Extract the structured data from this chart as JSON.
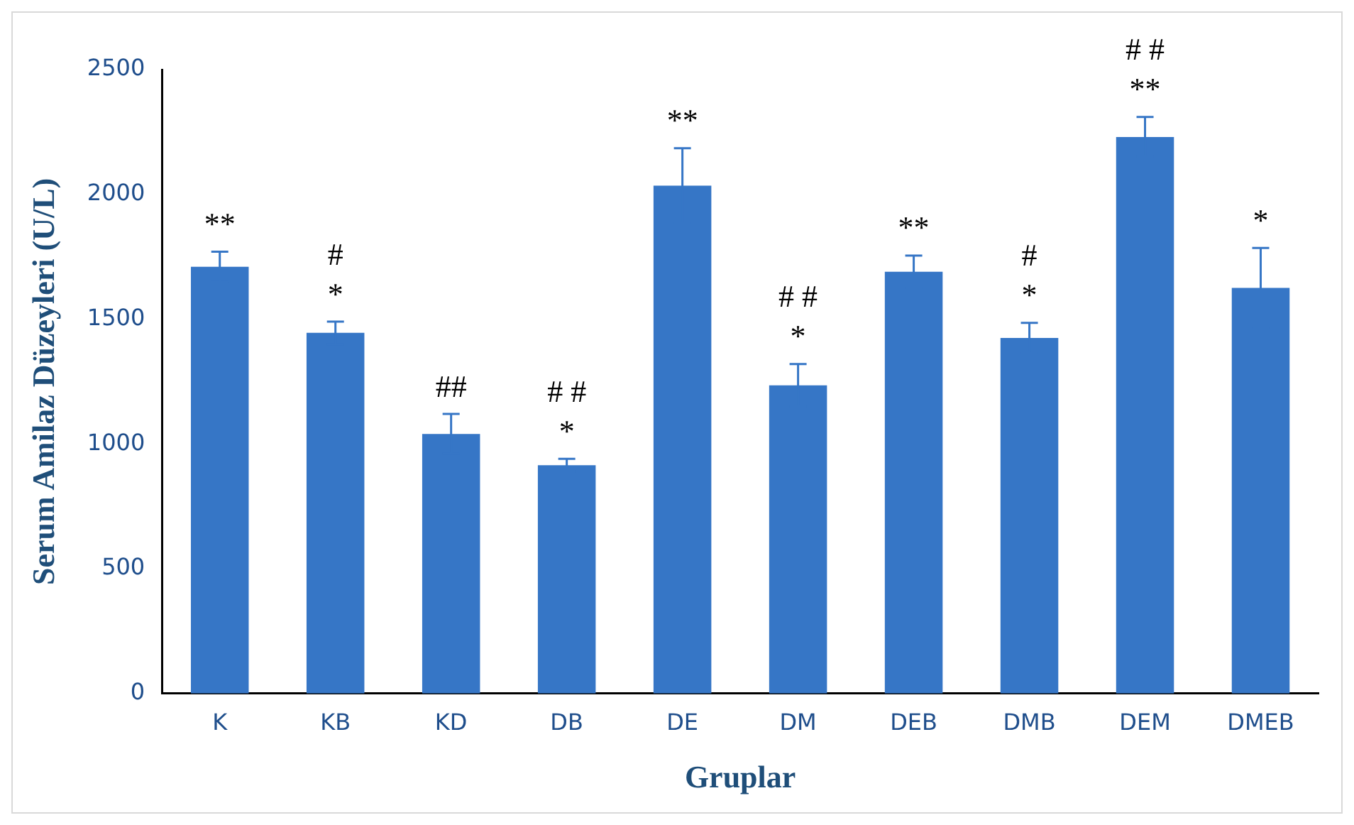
{
  "chart_data": {
    "type": "bar",
    "xlabel": "Gruplar",
    "ylabel": "Serum Amilaz Düzeyleri (U/L)",
    "categories": [
      "K",
      "KB",
      "KD",
      "DB",
      "DE",
      "DM",
      "DEB",
      "DMB",
      "DEM",
      "DMEB"
    ],
    "values": [
      1710,
      1445,
      1040,
      915,
      2035,
      1235,
      1690,
      1425,
      2230,
      1625
    ],
    "errors": [
      60,
      45,
      80,
      25,
      150,
      85,
      65,
      60,
      80,
      160
    ],
    "color": "#3676c6",
    "ylim": [
      0,
      2500
    ],
    "yticks": [
      0,
      500,
      1000,
      1500,
      2000,
      2500
    ],
    "grid": false,
    "legend": false,
    "annotations": [
      {
        "text": "**",
        "x": "K",
        "y": 1710
      },
      {
        "text": "#",
        "x": "KB",
        "y": 1445
      },
      {
        "text": "*",
        "x": "KB",
        "y": 1445
      },
      {
        "text": "##",
        "x": "KD",
        "y": 1040
      },
      {
        "text": "# #",
        "x": "DB",
        "y": 915
      },
      {
        "text": "*",
        "x": "DB",
        "y": 915
      },
      {
        "text": "**",
        "x": "DE",
        "y": 2035
      },
      {
        "text": "# #",
        "x": "DM",
        "y": 1235
      },
      {
        "text": "*",
        "x": "DM",
        "y": 1235
      },
      {
        "text": "**",
        "x": "DEB",
        "y": 1690
      },
      {
        "text": "#",
        "x": "DMB",
        "y": 1425
      },
      {
        "text": "*",
        "x": "DMB",
        "y": 1425
      },
      {
        "text": "# #",
        "x": "DEM",
        "y": 2230
      },
      {
        "text": "**",
        "x": "DEM",
        "y": 2230
      },
      {
        "text": "*",
        "x": "DMEB",
        "y": 1625
      }
    ]
  }
}
